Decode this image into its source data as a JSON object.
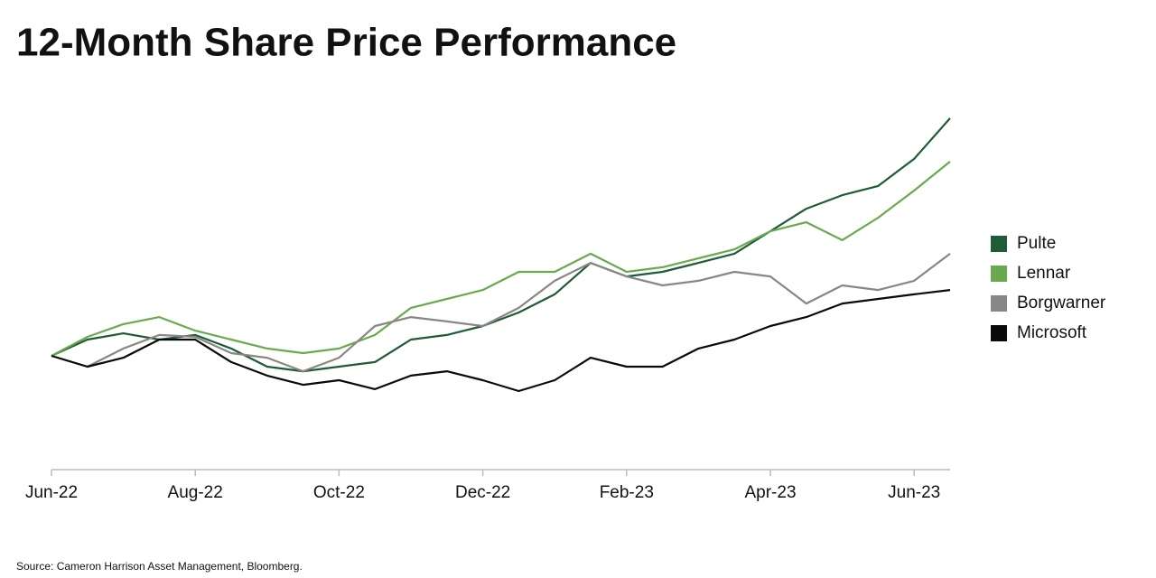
{
  "chart_data": {
    "type": "line",
    "title": "12-Month Share Price Performance",
    "source": "Source: Cameron Harrison Asset Management, Bloomberg.",
    "categories": [
      "Jun-22",
      null,
      null,
      null,
      "Aug-22",
      null,
      null,
      null,
      "Oct-22",
      null,
      null,
      null,
      "Dec-22",
      null,
      null,
      null,
      "Feb-23",
      null,
      null,
      null,
      "Apr-23",
      null,
      null,
      null,
      "Jun-23",
      null
    ],
    "ylim": [
      58,
      198
    ],
    "series": [
      {
        "name": "Pulte",
        "color": "#1e5c36",
        "values": [
          100,
          106,
          108.3,
          106,
          107.7,
          102.7,
          96,
          94.3,
          96,
          97.7,
          106,
          107.7,
          111,
          116,
          122.7,
          134.3,
          129.3,
          131,
          134.3,
          137.7,
          146,
          154.3,
          159.3,
          162.7,
          172.7,
          187.7
        ]
      },
      {
        "name": "Lennar",
        "color": "#6aaa4f",
        "values": [
          100,
          107,
          111.7,
          114.3,
          109.3,
          106,
          102.7,
          101,
          102.7,
          107.7,
          117.7,
          121,
          124.3,
          131,
          131,
          137.7,
          131,
          132.7,
          136,
          139.3,
          146,
          149.3,
          142.7,
          151,
          161,
          171.7
        ]
      },
      {
        "name": "Borgwarner",
        "color": "#8a8683",
        "values": [
          100,
          96,
          102.7,
          107.7,
          107,
          101,
          99.3,
          94.3,
          99.3,
          111,
          114.3,
          112.7,
          111,
          117.7,
          127.7,
          134.3,
          129.3,
          126,
          127.7,
          131,
          129.3,
          119.3,
          126,
          124.3,
          127.7,
          137.7
        ]
      },
      {
        "name": "Microsoft",
        "color": "#0a0a0a",
        "values": [
          100,
          96,
          99.3,
          106,
          106,
          97.7,
          92.7,
          89.3,
          91,
          87.7,
          92.7,
          94.3,
          91,
          87,
          91,
          99.3,
          96,
          96,
          102.7,
          106,
          111,
          114.3,
          119.3,
          121,
          122.7,
          124.3
        ]
      }
    ]
  }
}
